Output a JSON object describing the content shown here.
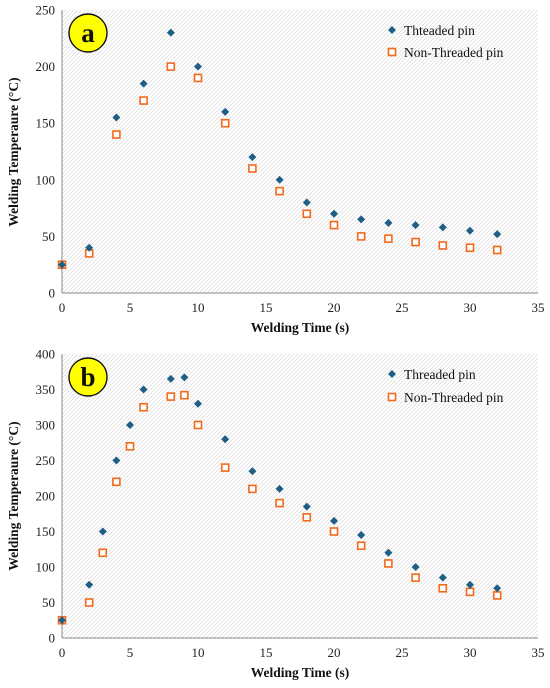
{
  "chart_data": [
    {
      "type": "scatter",
      "panel_label": "a",
      "title": "",
      "xlabel": "Welding Time (s)",
      "ylabel": "Welding Temperaure (°C)",
      "xlim": [
        0,
        35
      ],
      "ylim": [
        0,
        250
      ],
      "xticks": [
        0,
        5,
        10,
        15,
        20,
        25,
        30,
        35
      ],
      "yticks": [
        0,
        50,
        100,
        150,
        200,
        250
      ],
      "grid": false,
      "legend_position": "top-right",
      "series": [
        {
          "name": "Thteaded pin",
          "marker": "diamond-filled",
          "color": "#1f5f86",
          "x": [
            0,
            2,
            4,
            6,
            8,
            10,
            12,
            14,
            16,
            18,
            20,
            22,
            24,
            26,
            28,
            30,
            32
          ],
          "y": [
            25,
            40,
            155,
            185,
            230,
            200,
            160,
            120,
            100,
            80,
            70,
            65,
            62,
            60,
            58,
            55,
            52
          ]
        },
        {
          "name": "Non-Threaded pin",
          "marker": "square-open",
          "color": "#f26a1b",
          "x": [
            0,
            2,
            4,
            6,
            8,
            10,
            12,
            14,
            16,
            18,
            20,
            22,
            24,
            26,
            28,
            30,
            32
          ],
          "y": [
            25,
            35,
            140,
            170,
            200,
            190,
            150,
            110,
            90,
            70,
            60,
            50,
            48,
            45,
            42,
            40,
            38
          ]
        }
      ]
    },
    {
      "type": "scatter",
      "panel_label": "b",
      "title": "",
      "xlabel": "Welding Time (s)",
      "ylabel": "Welding Temperaure (°C)",
      "xlim": [
        0,
        35
      ],
      "ylim": [
        0,
        400
      ],
      "xticks": [
        0,
        5,
        10,
        15,
        20,
        25,
        30,
        35
      ],
      "yticks": [
        0,
        50,
        100,
        150,
        200,
        250,
        300,
        350,
        400
      ],
      "grid": false,
      "legend_position": "top-right",
      "series": [
        {
          "name": "Threaded pin",
          "marker": "diamond-filled",
          "color": "#1f5f86",
          "x": [
            0,
            2,
            3,
            4,
            5,
            6,
            8,
            9,
            10,
            12,
            14,
            16,
            18,
            20,
            22,
            24,
            26,
            28,
            30,
            32
          ],
          "y": [
            25,
            75,
            150,
            250,
            300,
            350,
            365,
            367,
            330,
            280,
            235,
            210,
            185,
            165,
            145,
            120,
            100,
            85,
            75,
            70
          ]
        },
        {
          "name": "Non-Threaded pin",
          "marker": "square-open",
          "color": "#f26a1b",
          "x": [
            0,
            2,
            3,
            4,
            5,
            6,
            8,
            9,
            10,
            12,
            14,
            16,
            18,
            20,
            22,
            24,
            26,
            28,
            30,
            32
          ],
          "y": [
            25,
            50,
            120,
            220,
            270,
            325,
            340,
            342,
            300,
            240,
            210,
            190,
            170,
            150,
            130,
            105,
            85,
            70,
            65,
            60
          ]
        }
      ]
    }
  ]
}
